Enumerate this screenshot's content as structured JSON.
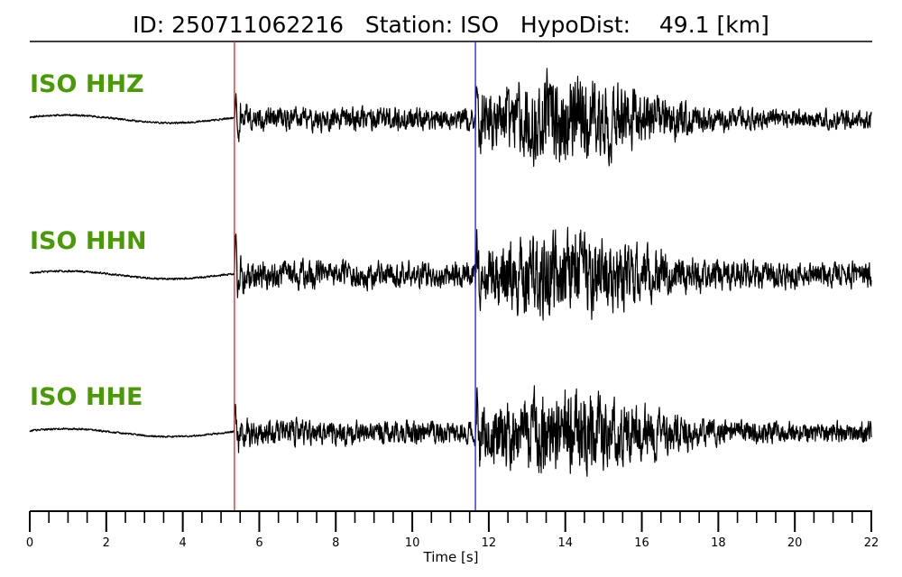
{
  "header": {
    "id_label": "ID:",
    "id_value": "250711062216",
    "station_label": "Station:",
    "station_value": "ISO",
    "hypodist_label": "HypoDist:",
    "hypodist_value": "49.1 [km]"
  },
  "colors": {
    "label": "#4a9a06",
    "p_pick": "#e8201a",
    "s_pick": "#1a1ae8",
    "trace": "#000000"
  },
  "chart_data": {
    "type": "line",
    "xlabel": "Time [s]",
    "xlim": [
      0,
      22
    ],
    "major_ticks": [
      0,
      2,
      4,
      6,
      8,
      10,
      12,
      14,
      16,
      18,
      20,
      22
    ],
    "minor_tick_step": 0.5,
    "p_pick_time": 5.35,
    "s_pick_time": 11.65,
    "channels": [
      {
        "label": "ISO HHZ",
        "seed": 11,
        "noise_amp": 0.03,
        "p_amp": 0.55,
        "coda_amp": 0.32,
        "s_amp": 1.0,
        "late_amp": 0.22
      },
      {
        "label": "ISO HHN",
        "seed": 23,
        "noise_amp": 0.03,
        "p_amp": 0.55,
        "coda_amp": 0.38,
        "s_amp": 1.0,
        "late_amp": 0.3
      },
      {
        "label": "ISO HHE",
        "seed": 37,
        "noise_amp": 0.03,
        "p_amp": 0.5,
        "coda_amp": 0.34,
        "s_amp": 1.0,
        "late_amp": 0.25
      }
    ]
  }
}
